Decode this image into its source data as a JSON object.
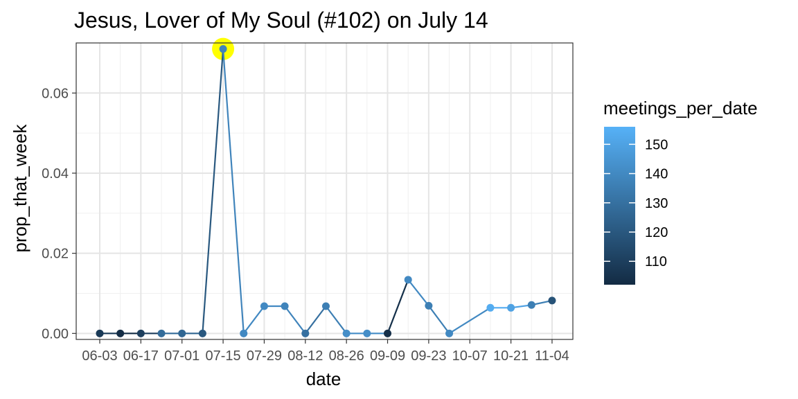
{
  "chart_data": {
    "type": "line",
    "title": "Jesus, Lover of My Soul (#102) on July 14",
    "xlabel": "date",
    "ylabel": "prop_that_week",
    "x_ticks": [
      "06-03",
      "06-17",
      "07-01",
      "07-15",
      "07-29",
      "08-12",
      "08-26",
      "09-09",
      "09-23",
      "10-07",
      "10-21",
      "11-04"
    ],
    "ylim": [
      -0.0015,
      0.0725
    ],
    "y_ticks": [
      0.0,
      0.02,
      0.04,
      0.06
    ],
    "y_tick_labels": [
      "0.00",
      "0.02",
      "0.04",
      "0.06"
    ],
    "grid": true,
    "highlight_index": 6,
    "highlight_color": "#ffff00",
    "color_scale": {
      "name": "meetings_per_date",
      "min": 102,
      "max": 156,
      "low_color": "#132b43",
      "high_color": "#56b1f7",
      "ticks": [
        110,
        120,
        130,
        140,
        150
      ]
    },
    "legend_position": "right",
    "points": [
      {
        "x": "06-03",
        "y": 0.0,
        "meetings_per_date": 108
      },
      {
        "x": "06-10",
        "y": 0.0,
        "meetings_per_date": 103
      },
      {
        "x": "06-17",
        "y": 0.0,
        "meetings_per_date": 110
      },
      {
        "x": "06-24",
        "y": 0.0,
        "meetings_per_date": 128
      },
      {
        "x": "07-01",
        "y": 0.0,
        "meetings_per_date": 126
      },
      {
        "x": "07-08",
        "y": 0.0,
        "meetings_per_date": 120
      },
      {
        "x": "07-15",
        "y": 0.071,
        "meetings_per_date": 138
      },
      {
        "x": "07-22",
        "y": 0.0,
        "meetings_per_date": 140
      },
      {
        "x": "07-29",
        "y": 0.0068,
        "meetings_per_date": 140
      },
      {
        "x": "08-05",
        "y": 0.0068,
        "meetings_per_date": 138
      },
      {
        "x": "08-12",
        "y": 0.0,
        "meetings_per_date": 130
      },
      {
        "x": "08-19",
        "y": 0.0068,
        "meetings_per_date": 136
      },
      {
        "x": "08-26",
        "y": 0.0,
        "meetings_per_date": 142
      },
      {
        "x": "09-02",
        "y": 0.0,
        "meetings_per_date": 142
      },
      {
        "x": "09-09",
        "y": 0.0,
        "meetings_per_date": 104
      },
      {
        "x": "09-16",
        "y": 0.0134,
        "meetings_per_date": 140
      },
      {
        "x": "09-23",
        "y": 0.0069,
        "meetings_per_date": 136
      },
      {
        "x": "09-30",
        "y": 0.0,
        "meetings_per_date": 140
      },
      {
        "x": "10-14",
        "y": 0.0064,
        "meetings_per_date": 154
      },
      {
        "x": "10-21",
        "y": 0.0064,
        "meetings_per_date": 150
      },
      {
        "x": "10-28",
        "y": 0.0071,
        "meetings_per_date": 136
      },
      {
        "x": "11-04",
        "y": 0.0082,
        "meetings_per_date": 118
      }
    ]
  }
}
